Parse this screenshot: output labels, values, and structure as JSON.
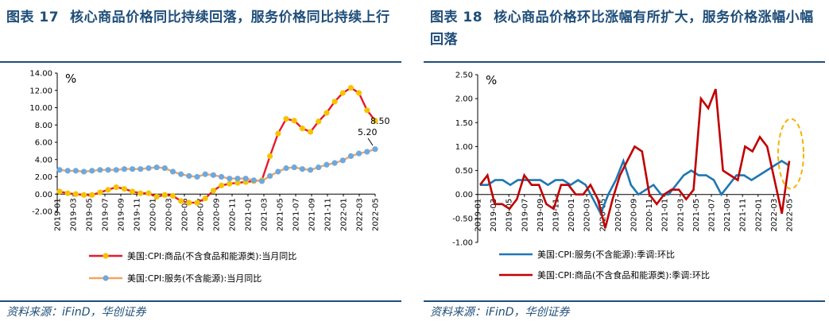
{
  "left": {
    "figure_no": "图表 17",
    "title": "核心商品价格同比持续回落，服务价格同比持续上行",
    "source": "资料来源：iFinD，华创证券",
    "chart_data": {
      "type": "line",
      "unit": "%",
      "ylim": [
        -2,
        14
      ],
      "yticks": [
        "14.00",
        "12.00",
        "10.00",
        "8.00",
        "6.00",
        "4.00",
        "2.00",
        "0.00",
        "-2.00"
      ],
      "ytick_values": [
        14,
        12,
        10,
        8,
        6,
        4,
        2,
        0,
        -2
      ],
      "xtick_labels": [
        "2019-01",
        "2019-03",
        "2019-05",
        "2019-07",
        "2019-09",
        "2019-11",
        "2020-01",
        "2020-03",
        "2020-05",
        "2020-07",
        "2020-09",
        "2020-11",
        "2021-01",
        "2021-03",
        "2021-05",
        "2021-07",
        "2021-09",
        "2021-11",
        "2022-01",
        "2022-03",
        "2022-05"
      ],
      "series": [
        {
          "name": "美国:CPI:商品(不含食品和能源类):当月同比",
          "color": "#e8192c",
          "marker_color": "#f5c400",
          "values": [
            0.3,
            0.1,
            0.0,
            -0.1,
            -0.1,
            0.2,
            0.5,
            0.8,
            0.6,
            0.3,
            0.1,
            0.1,
            -0.3,
            -0.1,
            -0.2,
            -0.8,
            -1.0,
            -1.0,
            -0.5,
            0.4,
            1.0,
            1.2,
            1.3,
            1.4,
            1.5,
            1.6,
            4.4,
            7.0,
            8.7,
            8.5,
            7.6,
            7.2,
            8.4,
            9.4,
            10.7,
            11.7,
            12.3,
            11.7,
            9.7,
            8.5
          ]
        },
        {
          "name": "美国:CPI:服务(不含能源):当月同比",
          "color": "#f4a460",
          "marker_color": "#6fa8dc",
          "values": [
            2.8,
            2.7,
            2.7,
            2.6,
            2.7,
            2.8,
            2.8,
            2.8,
            2.9,
            2.9,
            2.9,
            3.0,
            3.1,
            3.0,
            2.6,
            2.3,
            2.1,
            2.0,
            2.3,
            2.2,
            2.0,
            1.8,
            1.8,
            1.8,
            1.6,
            1.5,
            2.1,
            2.6,
            3.0,
            3.1,
            2.9,
            2.8,
            3.1,
            3.4,
            3.6,
            3.9,
            4.4,
            4.7,
            4.9,
            5.2
          ]
        }
      ],
      "annotations": [
        "8.50",
        "5.20"
      ]
    }
  },
  "right": {
    "figure_no": "图表 18",
    "title": "核心商品价格环比涨幅有所扩大，服务价格涨幅小幅回落",
    "source": "资料来源：iFinD，华创证券",
    "chart_data": {
      "type": "line",
      "unit": "%",
      "ylim": [
        -1.0,
        2.5
      ],
      "yticks": [
        "2.50",
        "2.00",
        "1.50",
        "1.00",
        "0.50",
        "0.00",
        "-0.50",
        "-1.00"
      ],
      "ytick_values": [
        2.5,
        2.0,
        1.5,
        1.0,
        0.5,
        0.0,
        -0.5,
        -1.0
      ],
      "xtick_labels": [
        "2019-01",
        "2019-03",
        "2019-05",
        "2019-07",
        "2019-09",
        "2019-11",
        "2020-01",
        "2020-03",
        "2020-05",
        "2020-07",
        "2020-09",
        "2020-11",
        "2021-01",
        "2021-03",
        "2021-05",
        "2021-07",
        "2021-09",
        "2021-11",
        "2022-01",
        "2022-03",
        "2022-05"
      ],
      "series": [
        {
          "name": "美国:CPI:服务(不含能源):季调:环比",
          "color": "#1f77b4",
          "values": [
            0.2,
            0.2,
            0.3,
            0.3,
            0.2,
            0.3,
            0.3,
            0.3,
            0.3,
            0.2,
            0.3,
            0.3,
            0.2,
            0.3,
            0.2,
            -0.1,
            -0.4,
            0.0,
            0.3,
            0.7,
            0.2,
            0.0,
            0.1,
            0.2,
            0.0,
            0.0,
            0.2,
            0.4,
            0.5,
            0.4,
            0.4,
            0.3,
            0.0,
            0.2,
            0.4,
            0.4,
            0.3,
            0.4,
            0.5,
            0.6,
            0.7,
            0.6
          ]
        },
        {
          "name": "美国:CPI:商品(不含食品和能源类):季调:环比",
          "color": "#c00000",
          "values": [
            0.2,
            0.4,
            -0.2,
            -0.2,
            -0.3,
            -0.1,
            0.4,
            0.2,
            0.2,
            -0.2,
            -0.3,
            0.2,
            0.2,
            0.0,
            0.0,
            0.2,
            -0.1,
            -0.7,
            -0.1,
            0.4,
            0.7,
            1.0,
            0.9,
            0.0,
            -0.2,
            0.0,
            0.1,
            0.1,
            -0.1,
            0.1,
            2.0,
            1.8,
            2.2,
            0.5,
            0.4,
            0.3,
            1.0,
            0.9,
            1.2,
            1.0,
            0.3,
            -0.4,
            0.7
          ]
        }
      ]
    }
  }
}
